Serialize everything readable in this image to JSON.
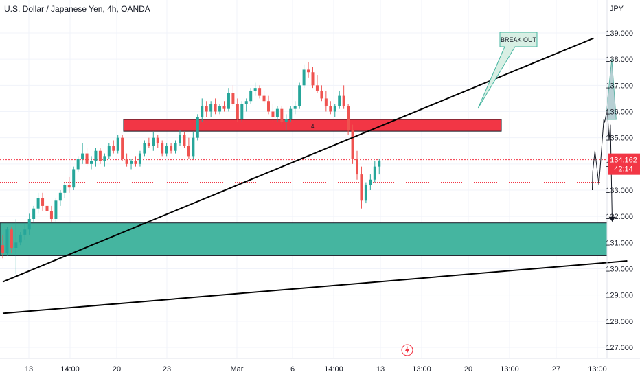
{
  "chart_data": {
    "type": "candlestick",
    "title": "U.S. Dollar / Japanese Yen, 4h, OANDA",
    "currency": "JPY",
    "y_ticks": [
      127,
      128,
      129,
      130,
      131,
      132,
      133,
      134,
      135,
      136,
      137,
      138,
      139
    ],
    "y_tick_labels": [
      "127.000",
      "128.000",
      "129.000",
      "130.000",
      "131.000",
      "132.000",
      "133.000",
      "134.000",
      "135.000",
      "136.000",
      "137.000",
      "138.000",
      "139.000"
    ],
    "ylim": [
      126.2,
      139.8
    ],
    "x_tick_labels": [
      "13",
      "14:00",
      "20",
      "23",
      "Mar",
      "6",
      "14:00",
      "13",
      "13:00",
      "20",
      "13:00",
      "27",
      "13:00"
    ],
    "last_price": "134.162",
    "countdown": "42:14",
    "prev_close": 133.3,
    "zone_label": "4",
    "annotation": "BREAK OUT",
    "zones": [
      {
        "name": "resistance",
        "top": 135.7,
        "bottom": 135.25,
        "color": "#f23645"
      },
      {
        "name": "support",
        "top": 131.75,
        "bottom": 130.5,
        "color": "#45b5a0"
      }
    ],
    "colors": {
      "up": "#26a69a",
      "down": "#ef5350",
      "grid": "#f0f3fa",
      "price_line": "#f23645"
    },
    "candles": [
      [
        130.9,
        131.3,
        130.4,
        130.6
      ],
      [
        130.6,
        131.6,
        130.5,
        131.5
      ],
      [
        131.5,
        131.6,
        130.6,
        130.8
      ],
      [
        130.8,
        131.9,
        129.8,
        131.0
      ],
      [
        131.0,
        131.4,
        130.9,
        131.3
      ],
      [
        131.3,
        131.7,
        131.1,
        131.5
      ],
      [
        131.5,
        132.1,
        131.3,
        131.9
      ],
      [
        131.9,
        132.4,
        131.8,
        132.3
      ],
      [
        132.3,
        132.9,
        132.1,
        132.7
      ],
      [
        132.7,
        132.9,
        132.2,
        132.4
      ],
      [
        132.4,
        132.6,
        132.0,
        132.2
      ],
      [
        132.2,
        132.4,
        131.8,
        131.9
      ],
      [
        131.9,
        132.7,
        131.8,
        132.6
      ],
      [
        132.6,
        133.0,
        132.4,
        132.9
      ],
      [
        132.9,
        133.3,
        132.7,
        133.2
      ],
      [
        133.2,
        133.5,
        132.9,
        133.1
      ],
      [
        133.1,
        133.9,
        133.0,
        133.8
      ],
      [
        133.8,
        134.3,
        133.7,
        134.2
      ],
      [
        134.2,
        134.8,
        134.0,
        134.4
      ],
      [
        134.4,
        134.6,
        133.9,
        134.0
      ],
      [
        134.0,
        134.3,
        133.8,
        134.1
      ],
      [
        134.1,
        134.6,
        133.9,
        134.5
      ],
      [
        134.5,
        134.6,
        134.0,
        134.1
      ],
      [
        134.1,
        134.4,
        133.9,
        134.3
      ],
      [
        134.3,
        134.8,
        134.2,
        134.7
      ],
      [
        134.7,
        134.9,
        134.4,
        134.5
      ],
      [
        134.5,
        135.1,
        134.4,
        135.0
      ],
      [
        135.0,
        135.1,
        134.1,
        134.2
      ],
      [
        134.2,
        134.4,
        133.9,
        134.0
      ],
      [
        134.0,
        134.2,
        133.8,
        134.1
      ],
      [
        134.1,
        134.3,
        133.9,
        134.0
      ],
      [
        134.0,
        134.5,
        133.9,
        134.4
      ],
      [
        134.4,
        134.9,
        134.3,
        134.8
      ],
      [
        134.8,
        135.0,
        134.6,
        134.7
      ],
      [
        134.7,
        135.2,
        134.5,
        135.0
      ],
      [
        135.0,
        135.1,
        134.6,
        134.8
      ],
      [
        134.8,
        134.9,
        134.3,
        134.4
      ],
      [
        134.4,
        134.8,
        134.3,
        134.7
      ],
      [
        134.7,
        134.8,
        134.4,
        134.5
      ],
      [
        134.5,
        134.9,
        134.4,
        134.8
      ],
      [
        134.8,
        135.3,
        134.7,
        135.1
      ],
      [
        135.1,
        135.2,
        134.6,
        134.7
      ],
      [
        134.7,
        135.0,
        134.2,
        134.3
      ],
      [
        134.3,
        135.2,
        134.2,
        135.0
      ],
      [
        135.0,
        135.9,
        134.9,
        135.8
      ],
      [
        135.8,
        136.5,
        135.6,
        136.2
      ],
      [
        136.2,
        136.4,
        135.8,
        136.0
      ],
      [
        136.0,
        136.4,
        135.8,
        136.3
      ],
      [
        136.3,
        136.5,
        135.9,
        136.0
      ],
      [
        136.0,
        136.3,
        135.9,
        136.2
      ],
      [
        136.2,
        136.4,
        136.0,
        136.1
      ],
      [
        136.1,
        136.9,
        136.0,
        136.7
      ],
      [
        136.7,
        137.0,
        136.2,
        136.3
      ],
      [
        136.3,
        136.5,
        135.6,
        135.7
      ],
      [
        135.7,
        136.4,
        135.6,
        136.3
      ],
      [
        136.3,
        136.5,
        136.0,
        136.4
      ],
      [
        136.4,
        136.9,
        136.3,
        136.8
      ],
      [
        136.8,
        137.1,
        136.6,
        136.9
      ],
      [
        136.9,
        137.0,
        136.5,
        136.6
      ],
      [
        136.6,
        136.8,
        136.3,
        136.4
      ],
      [
        136.4,
        136.6,
        135.9,
        136.0
      ],
      [
        136.0,
        136.3,
        135.6,
        135.8
      ],
      [
        135.8,
        136.2,
        135.6,
        136.1
      ],
      [
        136.1,
        136.2,
        135.5,
        135.6
      ],
      [
        135.6,
        135.9,
        135.3,
        135.7
      ],
      [
        135.7,
        136.2,
        135.6,
        136.1
      ],
      [
        136.1,
        136.4,
        135.9,
        136.2
      ],
      [
        136.2,
        137.1,
        136.1,
        137.0
      ],
      [
        137.0,
        137.8,
        136.9,
        137.6
      ],
      [
        137.6,
        137.9,
        137.3,
        137.5
      ],
      [
        137.5,
        137.7,
        136.9,
        137.0
      ],
      [
        137.0,
        137.4,
        136.7,
        136.8
      ],
      [
        136.8,
        137.0,
        136.4,
        136.5
      ],
      [
        136.5,
        136.8,
        136.0,
        136.2
      ],
      [
        136.2,
        136.4,
        135.9,
        136.0
      ],
      [
        136.0,
        136.3,
        135.8,
        136.2
      ],
      [
        136.2,
        136.8,
        136.1,
        136.6
      ],
      [
        136.6,
        137.0,
        136.1,
        136.2
      ],
      [
        136.2,
        136.3,
        135.1,
        135.3
      ],
      [
        135.3,
        135.5,
        134.0,
        134.2
      ],
      [
        134.2,
        134.5,
        133.4,
        133.6
      ],
      [
        133.6,
        133.9,
        132.3,
        132.6
      ],
      [
        132.6,
        133.3,
        132.5,
        133.2
      ],
      [
        133.2,
        133.6,
        133.0,
        133.4
      ],
      [
        133.4,
        134.1,
        133.3,
        133.9
      ],
      [
        133.9,
        134.2,
        133.6,
        134.1
      ]
    ],
    "projection_path": [
      [
        133.0,
        133.1
      ],
      [
        133.7,
        133.2
      ],
      [
        134.5,
        133.7
      ],
      [
        133.2,
        134.6
      ],
      [
        135.7,
        135.7
      ],
      [
        135.6,
        135.9
      ],
      [
        136.1,
        136.5
      ],
      [
        134.9,
        136.9
      ],
      [
        135.5,
        137.2
      ],
      [
        131.8,
        137.6
      ]
    ],
    "trendlines": [
      {
        "from": [
          0,
          129.5
        ],
        "to": [
          133.4,
          138.8
        ]
      },
      {
        "from": [
          0,
          128.3
        ],
        "to": [
          141.0,
          130.3
        ]
      }
    ],
    "triangle": [
      [
        136.1,
        135.7
      ],
      [
        137.5,
        138.0
      ],
      [
        138.5,
        135.7
      ]
    ]
  }
}
